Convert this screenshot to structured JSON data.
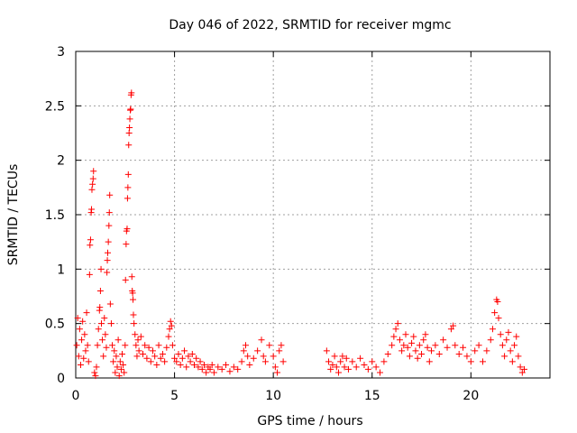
{
  "chart_data": {
    "type": "scatter",
    "title": "Day 046 of 2022, SRMTID for receiver mgmc",
    "xlabel": "GPS time / hours",
    "ylabel": "SRMTID / TECUs",
    "xlim": [
      0,
      24
    ],
    "ylim": [
      0,
      3
    ],
    "xticks": [
      0,
      5,
      10,
      15,
      20
    ],
    "xtick_labels": [
      "0",
      "5",
      "10",
      "15",
      "20"
    ],
    "yticks": [
      0,
      0.5,
      1,
      1.5,
      2,
      2.5,
      3
    ],
    "ytick_labels": [
      "0",
      "0.5",
      "1",
      "1.5",
      "2",
      "2.5",
      "3"
    ],
    "grid": true,
    "marker": "+",
    "color": "#ff0000",
    "series": [
      {
        "points": [
          [
            0.05,
            0.3
          ],
          [
            0.1,
            0.55
          ],
          [
            0.15,
            0.2
          ],
          [
            0.2,
            0.45
          ],
          [
            0.25,
            0.12
          ],
          [
            0.3,
            0.35
          ],
          [
            0.35,
            0.52
          ],
          [
            0.4,
            0.18
          ],
          [
            0.45,
            0.4
          ],
          [
            0.5,
            0.25
          ],
          [
            0.55,
            0.6
          ],
          [
            0.6,
            0.3
          ],
          [
            0.65,
            0.15
          ],
          [
            0.7,
            0.95
          ],
          [
            0.72,
            1.22
          ],
          [
            0.75,
            1.27
          ],
          [
            0.78,
            1.52
          ],
          [
            0.8,
            1.55
          ],
          [
            0.82,
            1.73
          ],
          [
            0.85,
            1.78
          ],
          [
            0.88,
            1.83
          ],
          [
            0.9,
            1.9
          ],
          [
            0.95,
            0.05
          ],
          [
            1.0,
            0.02
          ],
          [
            1.05,
            0.1
          ],
          [
            1.1,
            0.3
          ],
          [
            1.15,
            0.45
          ],
          [
            1.2,
            0.62
          ],
          [
            1.22,
            0.65
          ],
          [
            1.25,
            0.8
          ],
          [
            1.28,
            1.0
          ],
          [
            1.3,
            0.5
          ],
          [
            1.35,
            0.35
          ],
          [
            1.4,
            0.2
          ],
          [
            1.45,
            0.55
          ],
          [
            1.5,
            0.4
          ],
          [
            1.55,
            0.28
          ],
          [
            1.58,
            0.97
          ],
          [
            1.6,
            1.08
          ],
          [
            1.62,
            1.15
          ],
          [
            1.65,
            1.25
          ],
          [
            1.68,
            1.4
          ],
          [
            1.7,
            1.52
          ],
          [
            1.72,
            1.68
          ],
          [
            1.75,
            0.68
          ],
          [
            1.8,
            0.5
          ],
          [
            1.85,
            0.3
          ],
          [
            1.9,
            0.15
          ],
          [
            1.95,
            0.25
          ],
          [
            2.0,
            0.05
          ],
          [
            2.05,
            0.2
          ],
          [
            2.1,
            0.1
          ],
          [
            2.15,
            0.35
          ],
          [
            2.2,
            0.02
          ],
          [
            2.25,
            0.15
          ],
          [
            2.3,
            0.08
          ],
          [
            2.35,
            0.22
          ],
          [
            2.4,
            0.12
          ],
          [
            2.45,
            0.05
          ],
          [
            2.5,
            0.3
          ],
          [
            2.52,
            0.9
          ],
          [
            2.55,
            1.23
          ],
          [
            2.57,
            1.35
          ],
          [
            2.6,
            1.37
          ],
          [
            2.62,
            1.65
          ],
          [
            2.64,
            1.75
          ],
          [
            2.66,
            1.87
          ],
          [
            2.68,
            2.14
          ],
          [
            2.7,
            2.25
          ],
          [
            2.72,
            2.3
          ],
          [
            2.74,
            2.38
          ],
          [
            2.76,
            2.46
          ],
          [
            2.78,
            2.47
          ],
          [
            2.8,
            2.6
          ],
          [
            2.82,
            2.62
          ],
          [
            2.84,
            0.93
          ],
          [
            2.86,
            0.8
          ],
          [
            2.88,
            0.78
          ],
          [
            2.9,
            0.72
          ],
          [
            2.92,
            0.58
          ],
          [
            2.95,
            0.5
          ],
          [
            3.0,
            0.4
          ],
          [
            3.05,
            0.3
          ],
          [
            3.1,
            0.2
          ],
          [
            3.15,
            0.35
          ],
          [
            3.2,
            0.25
          ],
          [
            3.3,
            0.38
          ],
          [
            3.4,
            0.22
          ],
          [
            3.5,
            0.3
          ],
          [
            3.6,
            0.18
          ],
          [
            3.7,
            0.28
          ],
          [
            3.8,
            0.15
          ],
          [
            3.9,
            0.25
          ],
          [
            4.0,
            0.2
          ],
          [
            4.1,
            0.12
          ],
          [
            4.2,
            0.3
          ],
          [
            4.3,
            0.18
          ],
          [
            4.4,
            0.22
          ],
          [
            4.5,
            0.15
          ],
          [
            4.6,
            0.28
          ],
          [
            4.7,
            0.38
          ],
          [
            4.75,
            0.45
          ],
          [
            4.8,
            0.52
          ],
          [
            4.85,
            0.48
          ],
          [
            4.9,
            0.3
          ],
          [
            5.0,
            0.18
          ],
          [
            5.1,
            0.15
          ],
          [
            5.2,
            0.22
          ],
          [
            5.3,
            0.12
          ],
          [
            5.4,
            0.18
          ],
          [
            5.5,
            0.25
          ],
          [
            5.6,
            0.1
          ],
          [
            5.7,
            0.2
          ],
          [
            5.8,
            0.15
          ],
          [
            5.9,
            0.22
          ],
          [
            6.0,
            0.12
          ],
          [
            6.1,
            0.18
          ],
          [
            6.2,
            0.1
          ],
          [
            6.3,
            0.15
          ],
          [
            6.4,
            0.08
          ],
          [
            6.5,
            0.12
          ],
          [
            6.6,
            0.05
          ],
          [
            6.7,
            0.1
          ],
          [
            6.8,
            0.08
          ],
          [
            6.9,
            0.12
          ],
          [
            7.0,
            0.05
          ],
          [
            7.2,
            0.1
          ],
          [
            7.4,
            0.08
          ],
          [
            7.6,
            0.12
          ],
          [
            7.8,
            0.06
          ],
          [
            8.0,
            0.1
          ],
          [
            8.2,
            0.08
          ],
          [
            8.4,
            0.15
          ],
          [
            8.5,
            0.25
          ],
          [
            8.6,
            0.3
          ],
          [
            8.7,
            0.2
          ],
          [
            8.8,
            0.12
          ],
          [
            9.0,
            0.18
          ],
          [
            9.2,
            0.25
          ],
          [
            9.4,
            0.35
          ],
          [
            9.5,
            0.2
          ],
          [
            9.6,
            0.15
          ],
          [
            9.8,
            0.3
          ],
          [
            10.0,
            0.2
          ],
          [
            10.1,
            0.1
          ],
          [
            10.2,
            0.05
          ],
          [
            10.3,
            0.25
          ],
          [
            10.4,
            0.3
          ],
          [
            10.5,
            0.15
          ],
          [
            12.7,
            0.25
          ],
          [
            12.8,
            0.15
          ],
          [
            12.9,
            0.08
          ],
          [
            13.0,
            0.12
          ],
          [
            13.1,
            0.2
          ],
          [
            13.2,
            0.1
          ],
          [
            13.3,
            0.05
          ],
          [
            13.4,
            0.15
          ],
          [
            13.5,
            0.2
          ],
          [
            13.6,
            0.1
          ],
          [
            13.7,
            0.18
          ],
          [
            13.8,
            0.08
          ],
          [
            14.0,
            0.15
          ],
          [
            14.2,
            0.1
          ],
          [
            14.4,
            0.18
          ],
          [
            14.6,
            0.12
          ],
          [
            14.8,
            0.08
          ],
          [
            15.0,
            0.15
          ],
          [
            15.2,
            0.1
          ],
          [
            15.4,
            0.05
          ],
          [
            15.6,
            0.15
          ],
          [
            15.8,
            0.22
          ],
          [
            16.0,
            0.3
          ],
          [
            16.1,
            0.38
          ],
          [
            16.2,
            0.45
          ],
          [
            16.3,
            0.5
          ],
          [
            16.4,
            0.35
          ],
          [
            16.5,
            0.25
          ],
          [
            16.6,
            0.3
          ],
          [
            16.7,
            0.4
          ],
          [
            16.8,
            0.28
          ],
          [
            16.9,
            0.2
          ],
          [
            17.0,
            0.32
          ],
          [
            17.1,
            0.38
          ],
          [
            17.2,
            0.25
          ],
          [
            17.3,
            0.18
          ],
          [
            17.4,
            0.3
          ],
          [
            17.5,
            0.22
          ],
          [
            17.6,
            0.35
          ],
          [
            17.7,
            0.4
          ],
          [
            17.8,
            0.28
          ],
          [
            17.9,
            0.15
          ],
          [
            18.0,
            0.25
          ],
          [
            18.2,
            0.3
          ],
          [
            18.4,
            0.22
          ],
          [
            18.6,
            0.35
          ],
          [
            18.8,
            0.28
          ],
          [
            19.0,
            0.45
          ],
          [
            19.1,
            0.48
          ],
          [
            19.2,
            0.3
          ],
          [
            19.4,
            0.22
          ],
          [
            19.6,
            0.28
          ],
          [
            19.8,
            0.2
          ],
          [
            20.0,
            0.15
          ],
          [
            20.2,
            0.25
          ],
          [
            20.4,
            0.3
          ],
          [
            20.6,
            0.15
          ],
          [
            20.8,
            0.25
          ],
          [
            21.0,
            0.35
          ],
          [
            21.1,
            0.45
          ],
          [
            21.2,
            0.6
          ],
          [
            21.3,
            0.72
          ],
          [
            21.35,
            0.7
          ],
          [
            21.4,
            0.55
          ],
          [
            21.5,
            0.4
          ],
          [
            21.6,
            0.3
          ],
          [
            21.7,
            0.2
          ],
          [
            21.8,
            0.35
          ],
          [
            21.9,
            0.42
          ],
          [
            22.0,
            0.25
          ],
          [
            22.1,
            0.15
          ],
          [
            22.2,
            0.3
          ],
          [
            22.3,
            0.38
          ],
          [
            22.4,
            0.2
          ],
          [
            22.5,
            0.1
          ],
          [
            22.6,
            0.05
          ],
          [
            22.7,
            0.08
          ]
        ]
      }
    ]
  }
}
